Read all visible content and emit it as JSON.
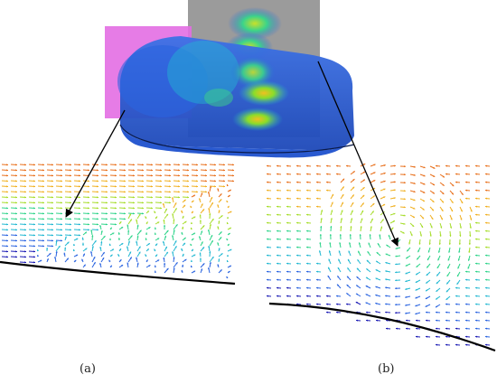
{
  "panels": [
    {
      "id": "a",
      "label": "(a)"
    },
    {
      "id": "b",
      "label": "(b)"
    }
  ],
  "colors": {
    "wing": "#2e5fd6",
    "wing_dark": "#1d3f9e",
    "plane_magenta": "#e36ee3",
    "plane_gray": "#8a8a8a",
    "arrow": "#000000",
    "wall": "#000000"
  },
  "colormap": [
    "#1a1ab4",
    "#2a64e0",
    "#22b8d2",
    "#2ed48a",
    "#a6dd2a",
    "#f0b020",
    "#e8701c"
  ]
}
